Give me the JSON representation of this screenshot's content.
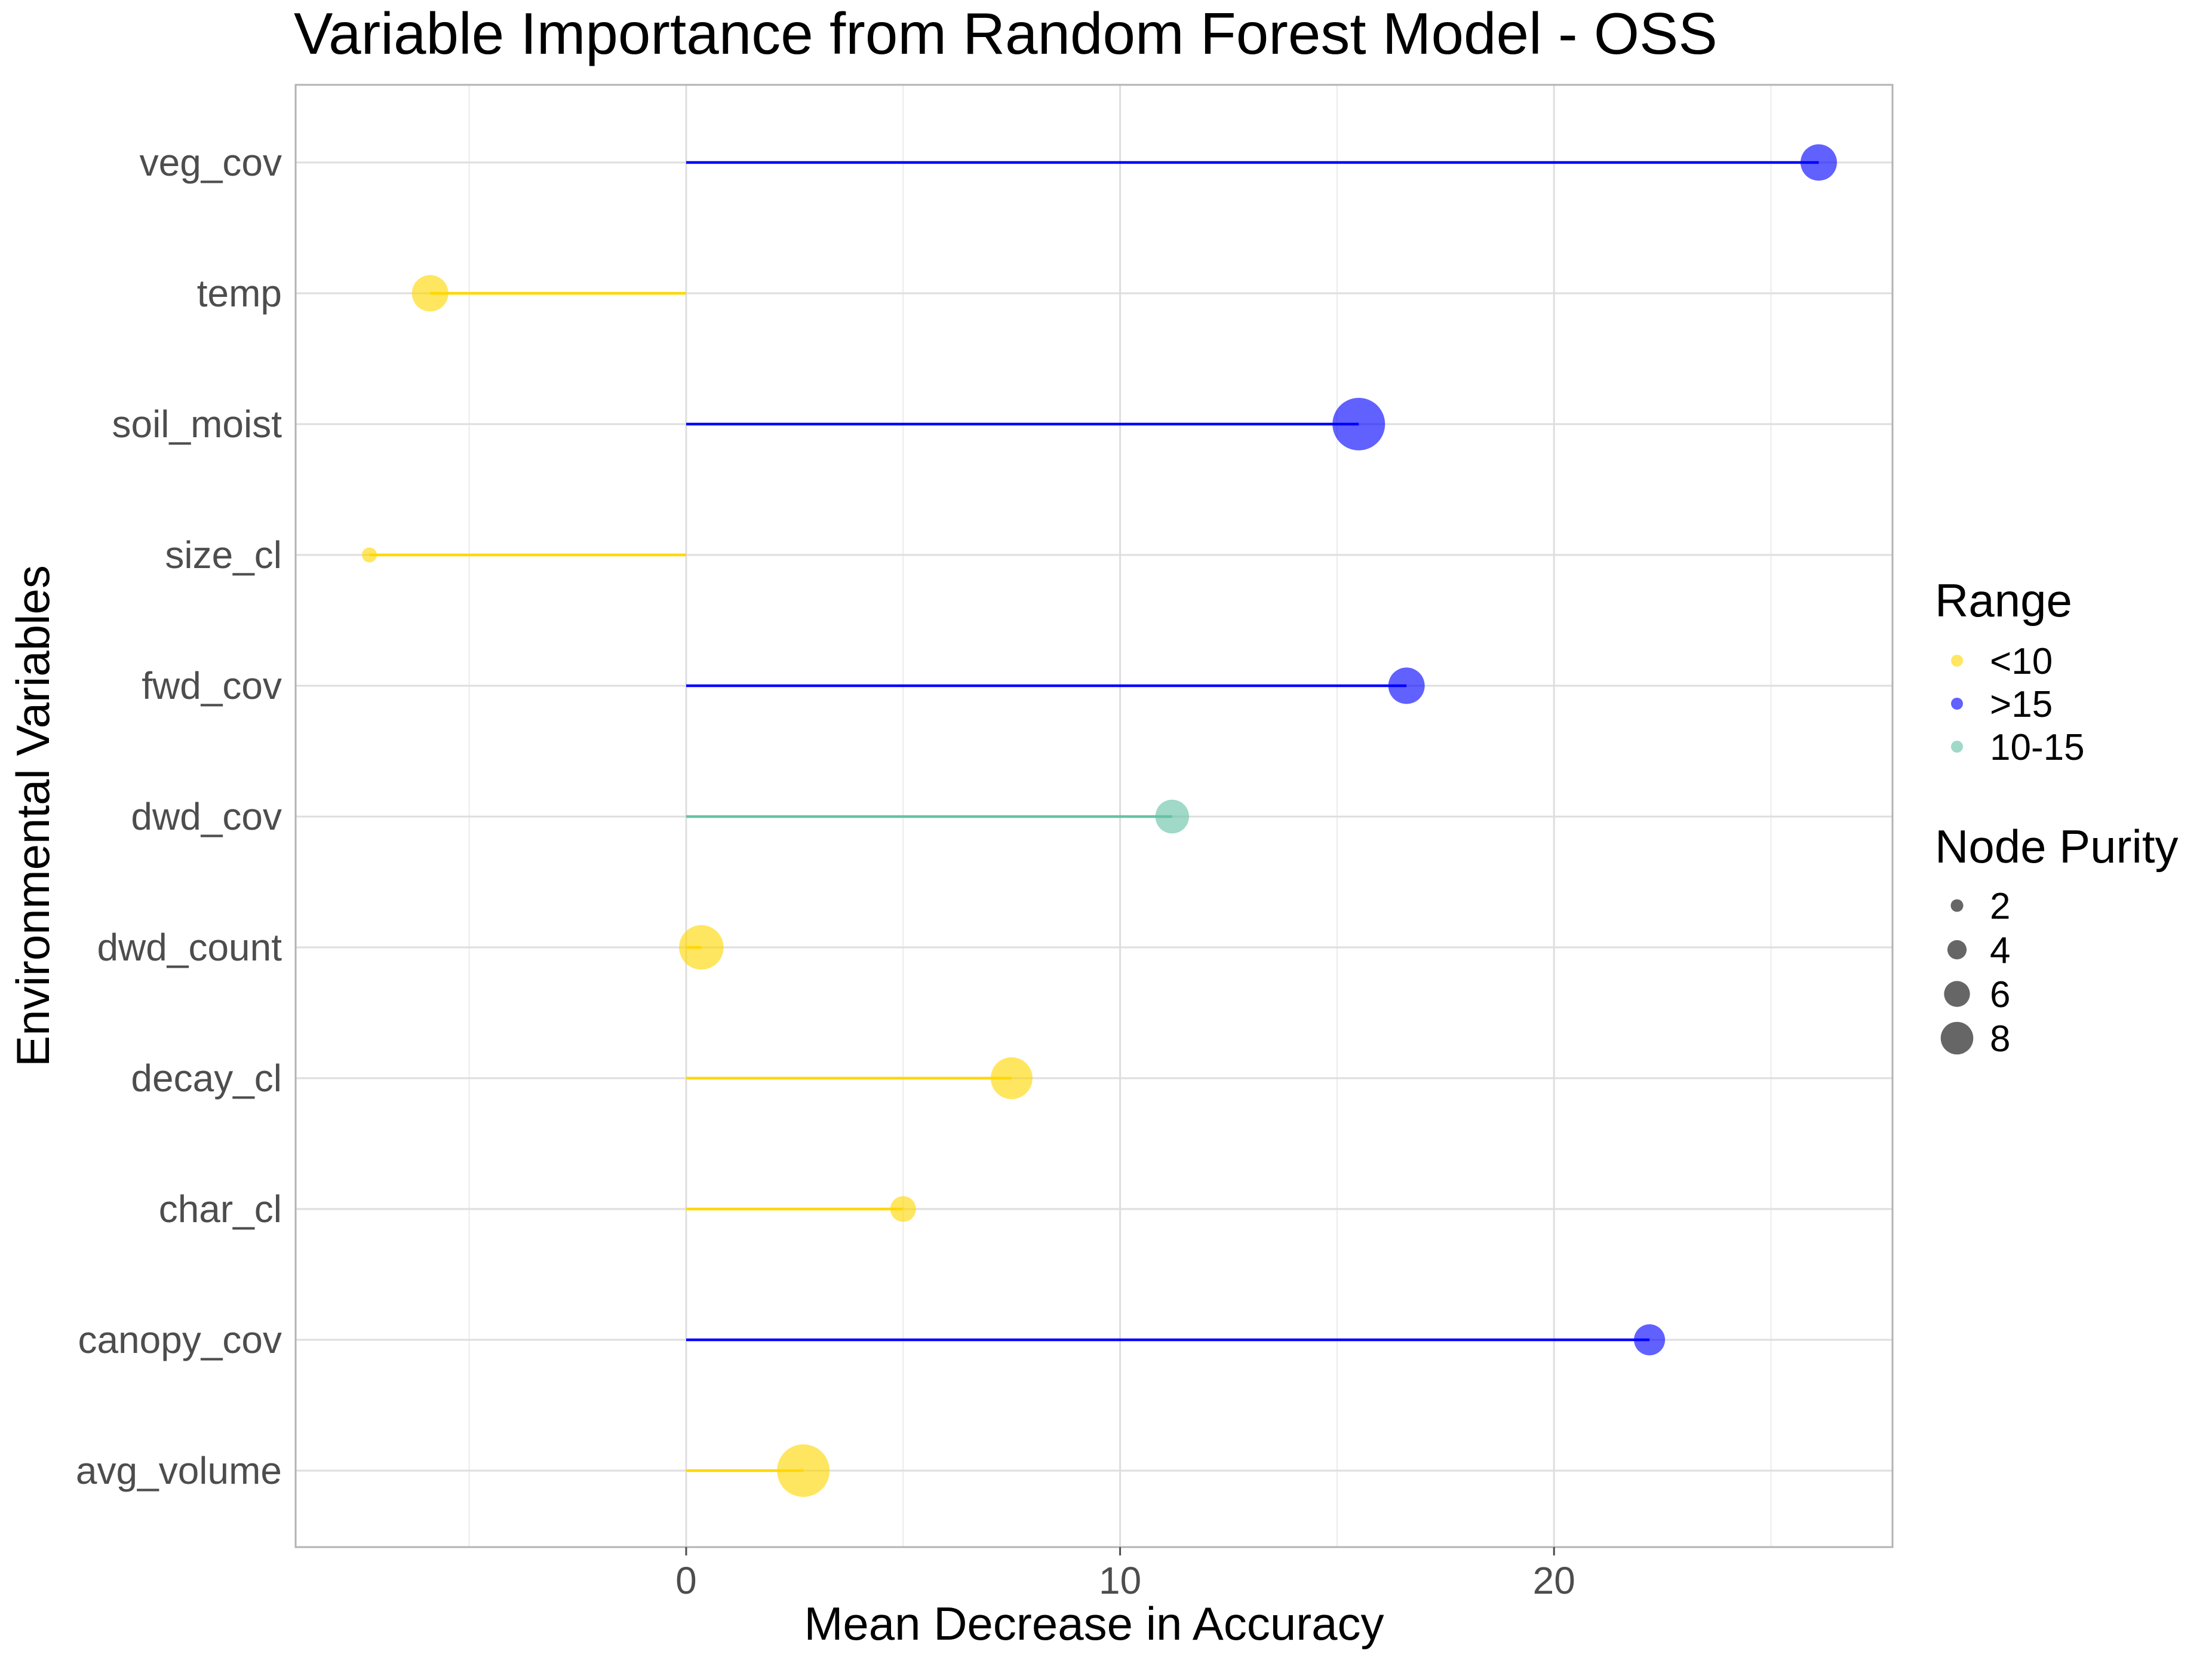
{
  "chart_data": {
    "type": "lollipop",
    "title": "Variable Importance from Random Forest Model - OSS",
    "xlabel": "Mean Decrease in Accuracy",
    "ylabel": "Environmental Variables",
    "xlim": [
      -9,
      27.8
    ],
    "x_ticks": [
      0,
      10,
      20
    ],
    "grid": true,
    "legend_position": "right",
    "categories": [
      "veg_cov",
      "temp",
      "soil_moist",
      "size_cl",
      "fwd_cov",
      "dwd_cov",
      "dwd_count",
      "decay_cl",
      "char_cl",
      "canopy_cov",
      "avg_volume"
    ],
    "points": [
      {
        "variable": "veg_cov",
        "mda": 26.1,
        "range": ">15",
        "node_purity": 5.0
      },
      {
        "variable": "temp",
        "mda": -5.9,
        "range": "<10",
        "node_purity": 5.0
      },
      {
        "variable": "soil_moist",
        "mda": 15.5,
        "range": ">15",
        "node_purity": 8.0
      },
      {
        "variable": "size_cl",
        "mda": -7.3,
        "range": "<10",
        "node_purity": 1.0
      },
      {
        "variable": "fwd_cov",
        "mda": 16.6,
        "range": ">15",
        "node_purity": 5.0
      },
      {
        "variable": "dwd_cov",
        "mda": 11.2,
        "range": "10-15",
        "node_purity": 4.5
      },
      {
        "variable": "dwd_count",
        "mda": 0.35,
        "range": "<10",
        "node_purity": 6.5
      },
      {
        "variable": "decay_cl",
        "mda": 7.5,
        "range": "<10",
        "node_purity": 6.0
      },
      {
        "variable": "char_cl",
        "mda": 5.0,
        "range": "<10",
        "node_purity": 3.0
      },
      {
        "variable": "canopy_cov",
        "mda": 22.2,
        "range": ">15",
        "node_purity": 4.0
      },
      {
        "variable": "avg_volume",
        "mda": 2.7,
        "range": "<10",
        "node_purity": 8.0
      }
    ],
    "range_colors": {
      "<10": "#FFD700",
      ">15": "#0000FF",
      "10-15": "#66C2A5"
    },
    "legend": {
      "range": {
        "title": "Range",
        "entries": [
          "<10",
          ">15",
          "10-15"
        ]
      },
      "size": {
        "title": "Node Purity",
        "entries": [
          "2",
          "4",
          "6",
          "8"
        ]
      }
    }
  }
}
